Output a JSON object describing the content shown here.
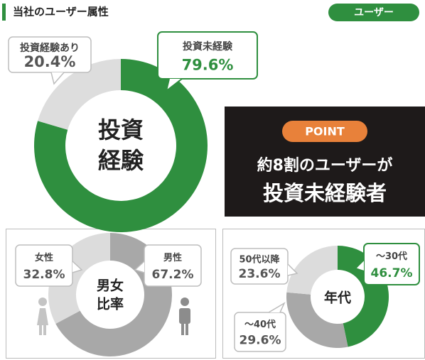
{
  "header": {
    "title": "当社のユーザー属性",
    "badge": "ユーザー"
  },
  "point": {
    "badge": "POINT",
    "lines": [
      "約8割のユーザーが",
      "投資未経験者"
    ]
  },
  "chart_data": [
    {
      "type": "donut",
      "center_label": [
        "投資",
        "経験"
      ],
      "categories": [
        "投資未経験",
        "投資経験あり"
      ],
      "values": [
        79.6,
        20.4
      ],
      "value_labels": [
        "79.6%",
        "20.4%"
      ],
      "colors": [
        "#2f8f3f",
        "#dddddd"
      ],
      "highlight": 0
    },
    {
      "type": "donut",
      "center_label": [
        "男女",
        "比率"
      ],
      "categories": [
        "男性",
        "女性"
      ],
      "values": [
        67.2,
        32.8
      ],
      "value_labels": [
        "67.2%",
        "32.8%"
      ],
      "colors": [
        "#a8a8a8",
        "#dcdcdc"
      ]
    },
    {
      "type": "donut",
      "center_label": [
        "年代"
      ],
      "categories": [
        "～30代",
        "～40代",
        "50代以降"
      ],
      "values": [
        46.7,
        29.6,
        23.6
      ],
      "value_labels": [
        "46.7%",
        "29.6%",
        "23.6%"
      ],
      "colors": [
        "#2f8f3f",
        "#a8a8a8",
        "#dcdcdc"
      ],
      "highlight": 0
    }
  ]
}
